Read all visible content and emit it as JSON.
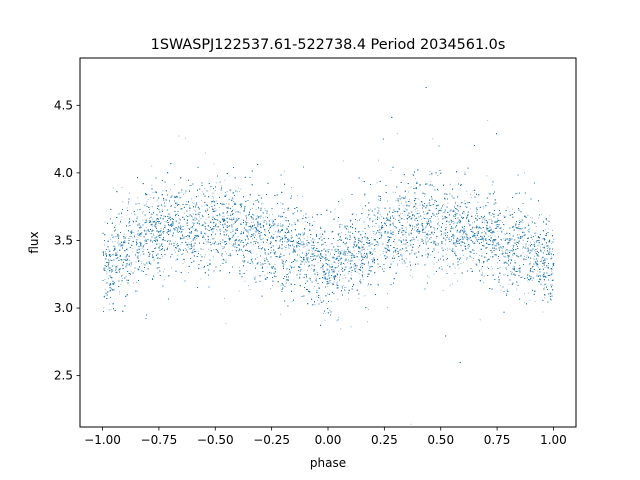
{
  "chart_data": {
    "type": "scatter",
    "title": "1SWASPJ122537.61-522738.4 Period 2034561.0s",
    "xlabel": "phase",
    "ylabel": "flux",
    "xlim": [
      -1.1,
      1.1
    ],
    "ylim": [
      2.12,
      4.85
    ],
    "x_ticks": [
      -1.0,
      -0.75,
      -0.5,
      -0.25,
      0.0,
      0.25,
      0.5,
      0.75,
      1.0
    ],
    "x_tick_labels": [
      "−1.00",
      "−0.75",
      "−0.50",
      "−0.25",
      "0.00",
      "0.25",
      "0.50",
      "0.75",
      "1.00"
    ],
    "y_ticks": [
      2.5,
      3.0,
      3.5,
      4.0,
      4.5
    ],
    "y_tick_labels": [
      "2.5",
      "3.0",
      "3.5",
      "4.0",
      "4.5"
    ],
    "grid": false,
    "legend": "none",
    "marker_color": "#1f77b4",
    "series": [
      {
        "phase": [
          -1.0,
          -0.875,
          -0.75,
          -0.625,
          -0.5,
          -0.375,
          -0.25,
          -0.125,
          0.0,
          0.125,
          0.25,
          0.375,
          0.5,
          0.625,
          0.75,
          0.875,
          1.0
        ],
        "median_flux": [
          3.3,
          3.45,
          3.6,
          3.62,
          3.62,
          3.58,
          3.5,
          3.42,
          3.3,
          3.4,
          3.55,
          3.62,
          3.63,
          3.58,
          3.5,
          3.42,
          3.3
        ],
        "scatter_half_width": [
          0.3,
          0.3,
          0.3,
          0.3,
          0.3,
          0.3,
          0.3,
          0.3,
          0.3,
          0.3,
          0.3,
          0.3,
          0.3,
          0.3,
          0.3,
          0.3,
          0.3
        ],
        "point_count": 22000
      }
    ]
  }
}
